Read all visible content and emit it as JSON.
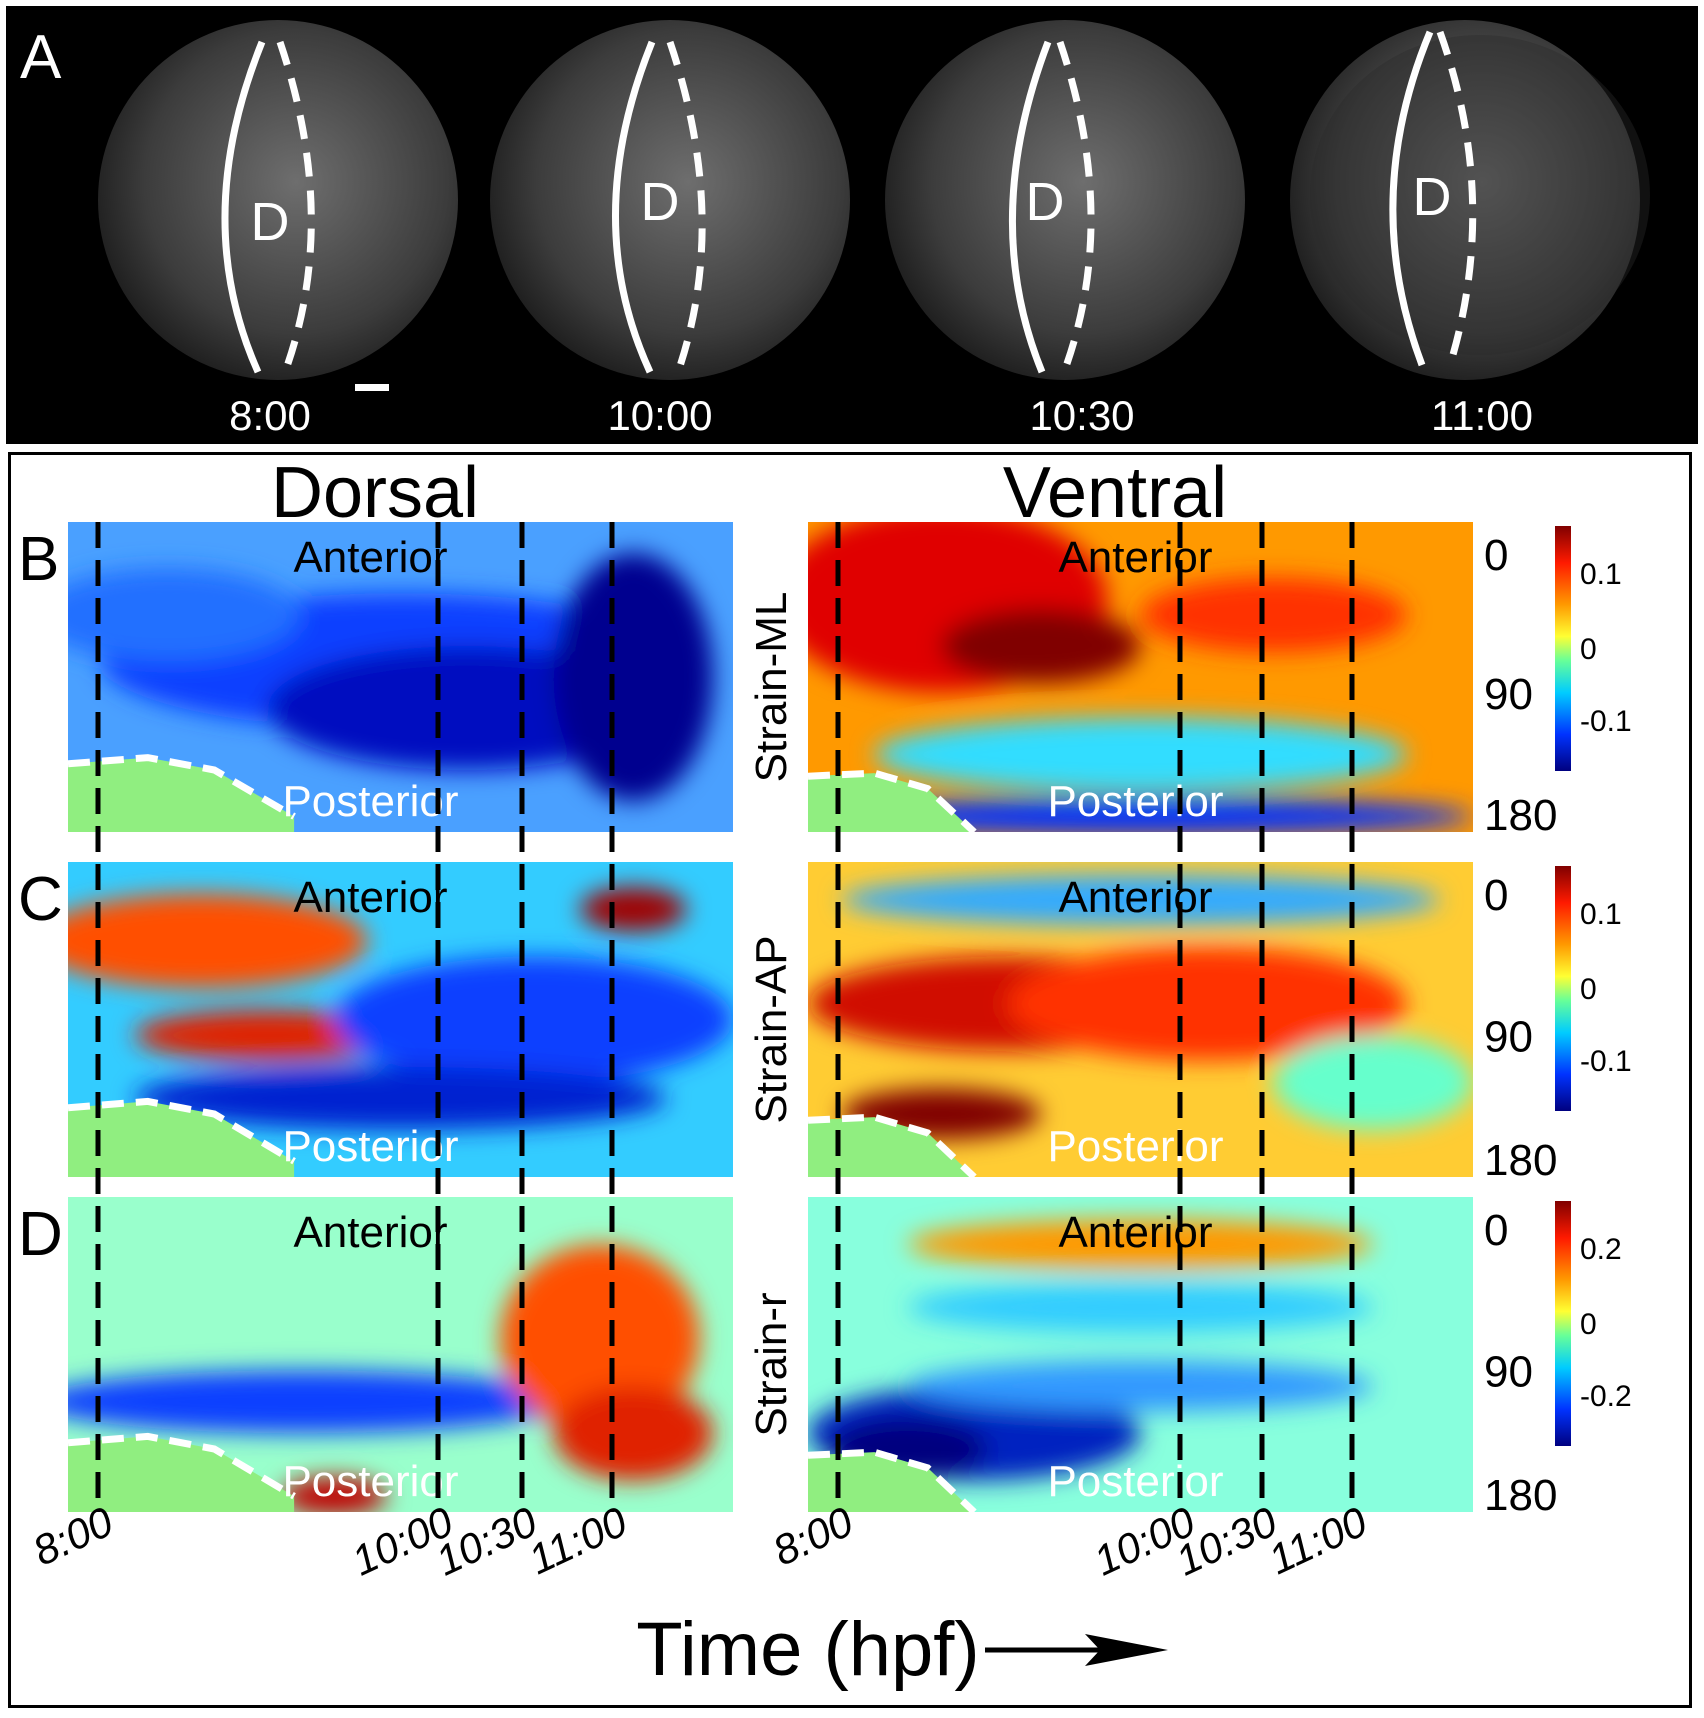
{
  "panel_a": {
    "label": "A",
    "embryos": [
      {
        "time": "8:00",
        "mark": "D"
      },
      {
        "time": "10:00",
        "mark": "D"
      },
      {
        "time": "10:30",
        "mark": "D"
      },
      {
        "time": "11:00",
        "mark": "D"
      }
    ]
  },
  "columns": {
    "dorsal": "Dorsal",
    "ventral": "Ventral"
  },
  "region_labels": {
    "anterior": "Anterior",
    "posterior": "Posterior"
  },
  "rows": [
    {
      "label": "B",
      "strain": "Strain-ML",
      "cbar_ticks": [
        "0.1",
        "0",
        "-0.1"
      ]
    },
    {
      "label": "C",
      "strain": "Strain-AP",
      "cbar_ticks": [
        "0.1",
        "0",
        "-0.1"
      ]
    },
    {
      "label": "D",
      "strain": "Strain-r",
      "cbar_ticks": [
        "0.2",
        "0",
        "-0.2"
      ]
    }
  ],
  "y_ticks": [
    "0",
    "90",
    "180"
  ],
  "time_ticks": [
    "8:00",
    "10:00",
    "10:30",
    "11:00"
  ],
  "x_axis_label": "Time (hpf)",
  "colors": {
    "background": "#ffffff",
    "panel_a_bg": "#000000"
  }
}
